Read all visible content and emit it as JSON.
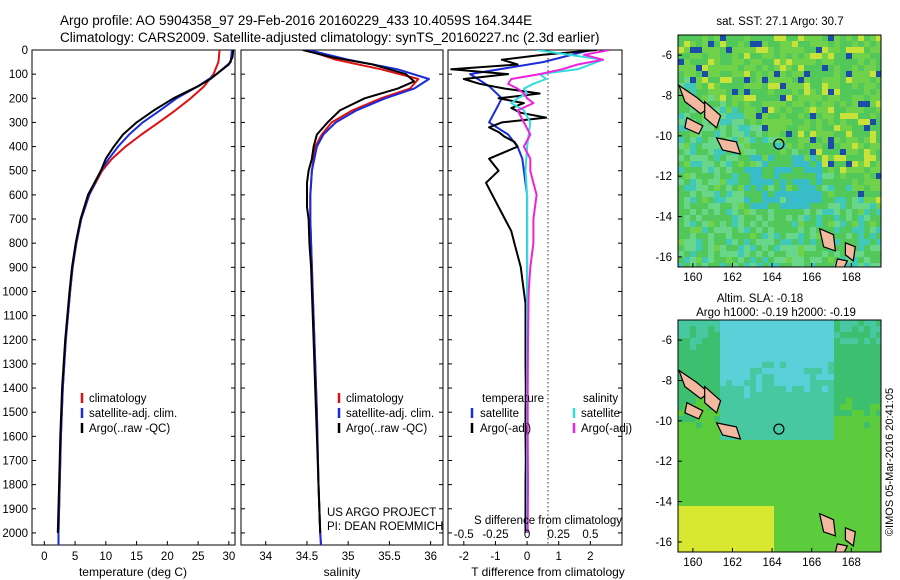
{
  "header": {
    "line1": "Argo profile: AO 5904358_97 29-Feb-2016 20160229_433 10.4059S 164.344E",
    "line2": "Climatology: CARS2009. Satellite-adjusted climatology: synTS_20160227.nc (2.3d earlier)"
  },
  "depth_ticks": [
    "0",
    "100",
    "200",
    "300",
    "400",
    "500",
    "600",
    "700",
    "800",
    "900",
    "1000",
    "1100",
    "1200",
    "1300",
    "1400",
    "1500",
    "1600",
    "1700",
    "1800",
    "1900",
    "2000"
  ],
  "colors": {
    "climatology": "#e01010",
    "satellite": "#1a2bd8",
    "argo": "#000000",
    "salinity_satellite": "#33dddd",
    "salinity_argo": "#ee22dd"
  },
  "temperature_panel": {
    "xlabel": "temperature (deg C)",
    "xticks": [
      "0",
      "5",
      "10",
      "15",
      "20",
      "25",
      "30"
    ],
    "legend": [
      "climatology",
      "satellite-adj. clim.",
      "Argo(..raw -QC)"
    ]
  },
  "salinity_panel": {
    "xlabel": "salinity",
    "xticks": [
      "34",
      "34.5",
      "35",
      "35.5",
      "36"
    ],
    "legend": [
      "climatology",
      "satellite-adj. clim.",
      "Argo(..raw -QC)"
    ],
    "note1": "US ARGO PROJECT",
    "note2": "PI: DEAN ROEMMICH"
  },
  "difference_panel": {
    "xlabel": "T difference from climatology",
    "s_label": "S difference from climatology",
    "xticks": [
      "-2",
      "-1",
      "0",
      "1",
      "2"
    ],
    "s_xticks": [
      "-0.5",
      "-0.25",
      "0",
      "0.25",
      "0.5"
    ],
    "legend_temp_title": "temperature",
    "legend_temp": [
      "satellite",
      "Argo(-adj)"
    ],
    "legend_sal_title": "salinity",
    "legend_sal": [
      "satellite",
      "Argo(-adj)"
    ]
  },
  "maps": {
    "sst_title": "sat. SST: 27.1  Argo: 30.7",
    "sla_title1": "Altim. SLA: -0.18",
    "sla_title2": "Argo h1000: -0.19 h2000: -0.19",
    "lat_ticks": [
      "-6",
      "-8",
      "-10",
      "-12",
      "-14",
      "-16"
    ],
    "lon_ticks": [
      "160",
      "162",
      "164",
      "166",
      "168"
    ],
    "credit": "©IMOS 05-Mar-2016 20:41:05",
    "float_position": {
      "lat": -10.4059,
      "lon": 164.344
    }
  },
  "chart_data": [
    {
      "type": "line",
      "xlabel": "temperature (deg C)",
      "ylabel": "",
      "xlim": [
        -2,
        31
      ],
      "ylim": [
        2050,
        0
      ],
      "series": [
        {
          "name": "climatology",
          "y": [
            0,
            50,
            100,
            150,
            200,
            250,
            300,
            350,
            400,
            450,
            500,
            600,
            700,
            800,
            900,
            1000,
            1200,
            1400,
            1600,
            1800,
            2000,
            2050
          ],
          "x": [
            28.5,
            28.3,
            27.5,
            26,
            23.8,
            21.3,
            18.6,
            15.8,
            13.2,
            11,
            9.4,
            7.3,
            6,
            5.2,
            4.6,
            4.2,
            3.5,
            3,
            2.7,
            2.5,
            2.3,
            2.3
          ]
        },
        {
          "name": "satellite-adj. clim.",
          "y": [
            0,
            50,
            100,
            150,
            200,
            250,
            300,
            350,
            400,
            450,
            500,
            600,
            700,
            800,
            900,
            1000,
            1200,
            1400,
            1600,
            1800,
            2000,
            2050
          ],
          "x": [
            30.5,
            30.3,
            28,
            25,
            21.5,
            18.8,
            16,
            13.8,
            12,
            10.5,
            9.2,
            7.3,
            6,
            5.2,
            4.6,
            4.2,
            3.5,
            3,
            2.7,
            2.5,
            2.3,
            2.3
          ]
        },
        {
          "name": "Argo(..raw -QC)",
          "y": [
            0,
            30,
            60,
            90,
            120,
            150,
            200,
            250,
            300,
            350,
            400,
            450,
            500,
            600,
            700,
            800,
            900,
            1000,
            1200,
            1400,
            1600,
            1800,
            2000
          ],
          "x": [
            30.7,
            30.6,
            30,
            28.5,
            27,
            25,
            21,
            17.8,
            15,
            12.8,
            11.3,
            10,
            9.2,
            7.1,
            5.9,
            5.1,
            4.5,
            4.1,
            3.4,
            2.9,
            2.6,
            2.4,
            2.2
          ]
        }
      ]
    },
    {
      "type": "line",
      "xlabel": "salinity",
      "ylabel": "",
      "xlim": [
        33.7,
        36.15
      ],
      "ylim": [
        2050,
        0
      ],
      "series": [
        {
          "name": "climatology",
          "y": [
            0,
            40,
            80,
            120,
            160,
            200,
            250,
            300,
            350,
            400,
            500,
            600,
            700,
            800,
            1000,
            1200,
            1500,
            1800,
            2000,
            2050
          ],
          "x": [
            34.5,
            34.85,
            35.4,
            35.85,
            35.75,
            35.4,
            35.05,
            34.8,
            34.68,
            34.6,
            34.56,
            34.54,
            34.54,
            34.55,
            34.57,
            34.59,
            34.62,
            34.64,
            34.66,
            34.67
          ]
        },
        {
          "name": "satellite-adj. clim.",
          "y": [
            0,
            40,
            80,
            120,
            160,
            200,
            250,
            300,
            350,
            400,
            500,
            600,
            700,
            800,
            1000,
            1200,
            1500,
            1800,
            2000,
            2050
          ],
          "x": [
            34.52,
            35.0,
            35.6,
            35.98,
            35.8,
            35.45,
            35.1,
            34.85,
            34.7,
            34.62,
            34.56,
            34.54,
            34.54,
            34.55,
            34.57,
            34.59,
            34.62,
            34.64,
            34.66,
            34.67
          ]
        },
        {
          "name": "Argo(..raw -QC)",
          "y": [
            0,
            30,
            60,
            100,
            130,
            160,
            200,
            250,
            300,
            350,
            400,
            450,
            500,
            550,
            600,
            650,
            700,
            800,
            900,
            1000,
            1200,
            1400,
            1600,
            1800,
            2000
          ],
          "x": [
            34.45,
            34.8,
            35.3,
            35.7,
            35.8,
            35.6,
            35.2,
            34.9,
            34.75,
            34.62,
            34.58,
            34.56,
            34.52,
            34.5,
            34.5,
            34.5,
            34.52,
            34.53,
            34.55,
            34.56,
            34.58,
            34.6,
            34.62,
            34.64,
            34.66
          ]
        }
      ]
    },
    {
      "type": "line",
      "xlabel": "T difference from climatology",
      "ylabel": "",
      "xlim": [
        -2.5,
        3.0
      ],
      "ylim": [
        2050,
        0
      ],
      "series": [
        {
          "name": "temperature satellite",
          "y": [
            0,
            50,
            100,
            150,
            200,
            250,
            300,
            350,
            400,
            450,
            500,
            600,
            800,
            1000,
            1500,
            2000
          ],
          "x": [
            2.0,
            0.5,
            -1.8,
            -1.2,
            -0.8,
            -1.0,
            -1.2,
            -0.6,
            -0.3,
            -0.15,
            -0.1,
            0,
            0,
            0,
            0,
            0
          ]
        },
        {
          "name": "temperature Argo(-adj)",
          "y": [
            0,
            20,
            40,
            60,
            80,
            100,
            120,
            140,
            160,
            180,
            200,
            220,
            240,
            260,
            280,
            300,
            320,
            340,
            360,
            380,
            400,
            450,
            500,
            550,
            600,
            650,
            700,
            750,
            800,
            850,
            900,
            950,
            1000,
            1050,
            1100,
            1200,
            1300,
            1400,
            1500,
            1600,
            1700,
            1800,
            1900,
            2000
          ],
          "x": [
            2.2,
            0.5,
            -0.8,
            -0.3,
            -2.4,
            -0.6,
            -2.0,
            -1.5,
            -0.7,
            0.4,
            -0.9,
            -0.1,
            -0.5,
            -0.2,
            0.6,
            -0.8,
            -1.2,
            -0.9,
            -0.7,
            -0.4,
            -0.3,
            -1.2,
            -0.9,
            -1.3,
            -1.1,
            -0.9,
            -0.7,
            -0.5,
            -0.4,
            -0.3,
            -0.2,
            -0.15,
            -0.1,
            -0.05,
            -0.05,
            -0.05,
            -0.05,
            -0.04,
            -0.05,
            -0.05,
            -0.04,
            -0.05,
            -0.05,
            -0.05
          ]
        },
        {
          "name": "salinity satellite",
          "y": [
            0,
            40,
            80,
            100,
            120,
            140,
            160,
            180,
            200,
            220,
            250,
            300,
            400,
            500,
            600,
            800,
            1000,
            1500,
            2000
          ],
          "x": [
            0.3,
            2.4,
            1.6,
            0.4,
            0.6,
            0.2,
            -0.1,
            0.0,
            -0.3,
            -0.5,
            -0.1,
            0.1,
            0.0,
            -0.05,
            0,
            0,
            0,
            0,
            0
          ]
        },
        {
          "name": "salinity Argo(-adj)",
          "y": [
            0,
            20,
            40,
            60,
            80,
            100,
            120,
            140,
            160,
            180,
            200,
            220,
            250,
            300,
            350,
            400,
            450,
            500,
            550,
            600,
            700,
            800,
            900,
            1000,
            1200,
            1400,
            1600,
            1800,
            2000
          ],
          "x": [
            2.6,
            1.8,
            2.4,
            1.6,
            1.1,
            0.4,
            -0.5,
            -0.6,
            -0.3,
            -0.1,
            0.0,
            0.2,
            -0.3,
            -0.1,
            0.1,
            -0.1,
            0.1,
            0.1,
            0.2,
            0.3,
            0.2,
            0.2,
            0.1,
            0.05,
            0.03,
            0.02,
            0.02,
            0.03,
            0.02
          ]
        }
      ]
    }
  ]
}
